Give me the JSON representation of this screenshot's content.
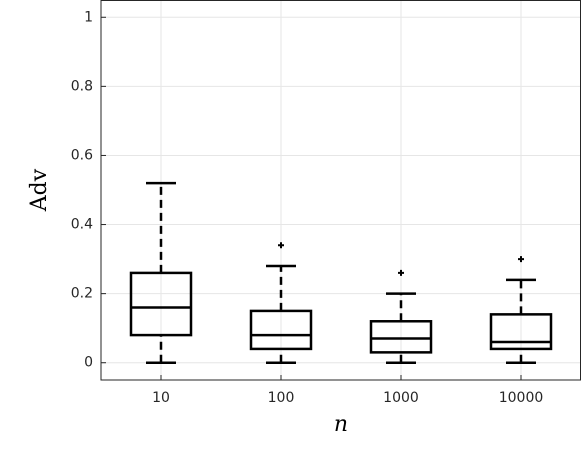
{
  "chart_data": {
    "type": "box",
    "x_label": "n",
    "y_label": "Adv",
    "categories": [
      "10",
      "100",
      "1000",
      "10000"
    ],
    "boxes": [
      {
        "min": 0,
        "q1": 0.08,
        "median": 0.16,
        "q3": 0.26,
        "max": 0.52,
        "outliers": []
      },
      {
        "min": 0,
        "q1": 0.04,
        "median": 0.08,
        "q3": 0.15,
        "max": 0.28,
        "outliers": [
          0.34
        ]
      },
      {
        "min": 0,
        "q1": 0.03,
        "median": 0.07,
        "q3": 0.12,
        "max": 0.2,
        "outliers": [
          0.26
        ]
      },
      {
        "min": 0,
        "q1": 0.04,
        "median": 0.06,
        "q3": 0.14,
        "max": 0.24,
        "outliers": [
          0.3
        ]
      }
    ],
    "color": "#000000",
    "ylim": [
      -0.05,
      1.05
    ],
    "yticks": [
      0,
      0.2,
      0.4,
      0.6,
      0.8,
      1
    ],
    "grid": true
  }
}
